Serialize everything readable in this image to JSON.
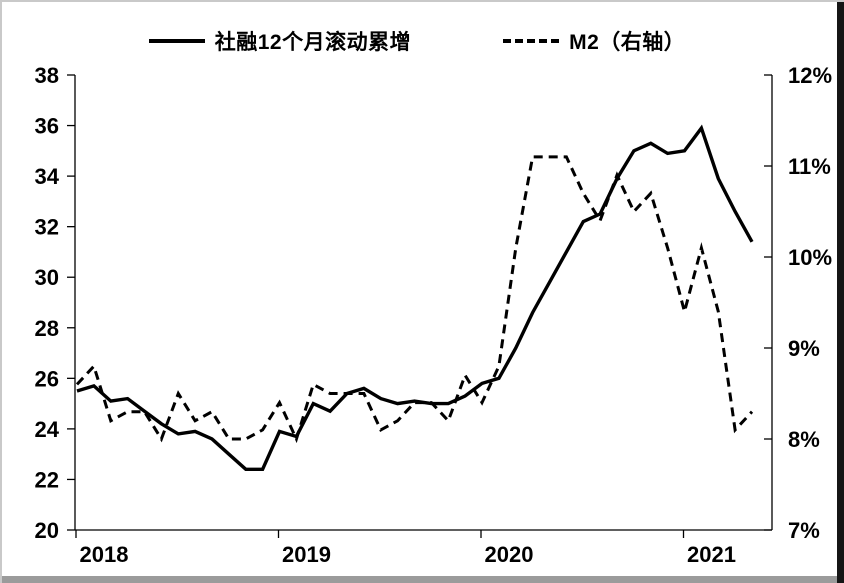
{
  "legend": {
    "series1": "社融12个月滚动累增",
    "series2": "M2（右轴）"
  },
  "chart_data": {
    "type": "line",
    "title": "",
    "x": [
      "2018-01",
      "2018-02",
      "2018-03",
      "2018-04",
      "2018-05",
      "2018-06",
      "2018-07",
      "2018-08",
      "2018-09",
      "2018-10",
      "2018-11",
      "2018-12",
      "2019-01",
      "2019-02",
      "2019-03",
      "2019-04",
      "2019-05",
      "2019-06",
      "2019-07",
      "2019-08",
      "2019-09",
      "2019-10",
      "2019-11",
      "2019-12",
      "2020-01",
      "2020-02",
      "2020-03",
      "2020-04",
      "2020-05",
      "2020-06",
      "2020-07",
      "2020-08",
      "2020-09",
      "2020-10",
      "2020-11",
      "2020-12",
      "2021-01",
      "2021-02",
      "2021-03",
      "2021-04",
      "2021-05"
    ],
    "series": [
      {
        "name": "社融12个月滚动累增",
        "axis": "left",
        "style": "solid",
        "values": [
          25.5,
          25.7,
          25.1,
          25.2,
          24.7,
          24.2,
          23.8,
          23.9,
          23.6,
          23.0,
          22.4,
          22.4,
          23.9,
          23.7,
          25.0,
          24.7,
          25.4,
          25.6,
          25.2,
          25.0,
          25.1,
          25.0,
          25.0,
          25.3,
          25.8,
          26.0,
          27.2,
          28.6,
          29.8,
          31.0,
          32.2,
          32.5,
          33.9,
          35.0,
          35.3,
          34.9,
          35.0,
          35.9,
          33.9,
          32.6,
          31.4
        ]
      },
      {
        "name": "M2（右轴）",
        "axis": "right",
        "style": "dashed",
        "values": [
          8.6,
          8.8,
          8.2,
          8.3,
          8.3,
          8.0,
          8.5,
          8.2,
          8.3,
          8.0,
          8.0,
          8.1,
          8.4,
          8.0,
          8.6,
          8.5,
          8.5,
          8.5,
          8.1,
          8.2,
          8.4,
          8.4,
          8.2,
          8.7,
          8.4,
          8.8,
          10.1,
          11.1,
          11.1,
          11.1,
          10.7,
          10.4,
          10.9,
          10.5,
          10.7,
          10.1,
          9.4,
          10.1,
          9.4,
          8.1,
          8.3
        ]
      }
    ],
    "left_axis": {
      "min": 20,
      "max": 38,
      "tick_step": 2,
      "tick_labels": [
        "38",
        "36",
        "34",
        "32",
        "30",
        "28",
        "26",
        "24",
        "22",
        "20"
      ]
    },
    "right_axis": {
      "min": 7,
      "max": 12,
      "tick_step": 1,
      "tick_labels": [
        "12%",
        "11%",
        "10%",
        "9%",
        "8%",
        "7%"
      ]
    },
    "x_axis": {
      "tick_labels": [
        "2018",
        "2019",
        "2020",
        "2021"
      ]
    },
    "grid": false,
    "legend_position": "top",
    "colors": {
      "line": "#000000",
      "background": "#ffffff"
    }
  }
}
